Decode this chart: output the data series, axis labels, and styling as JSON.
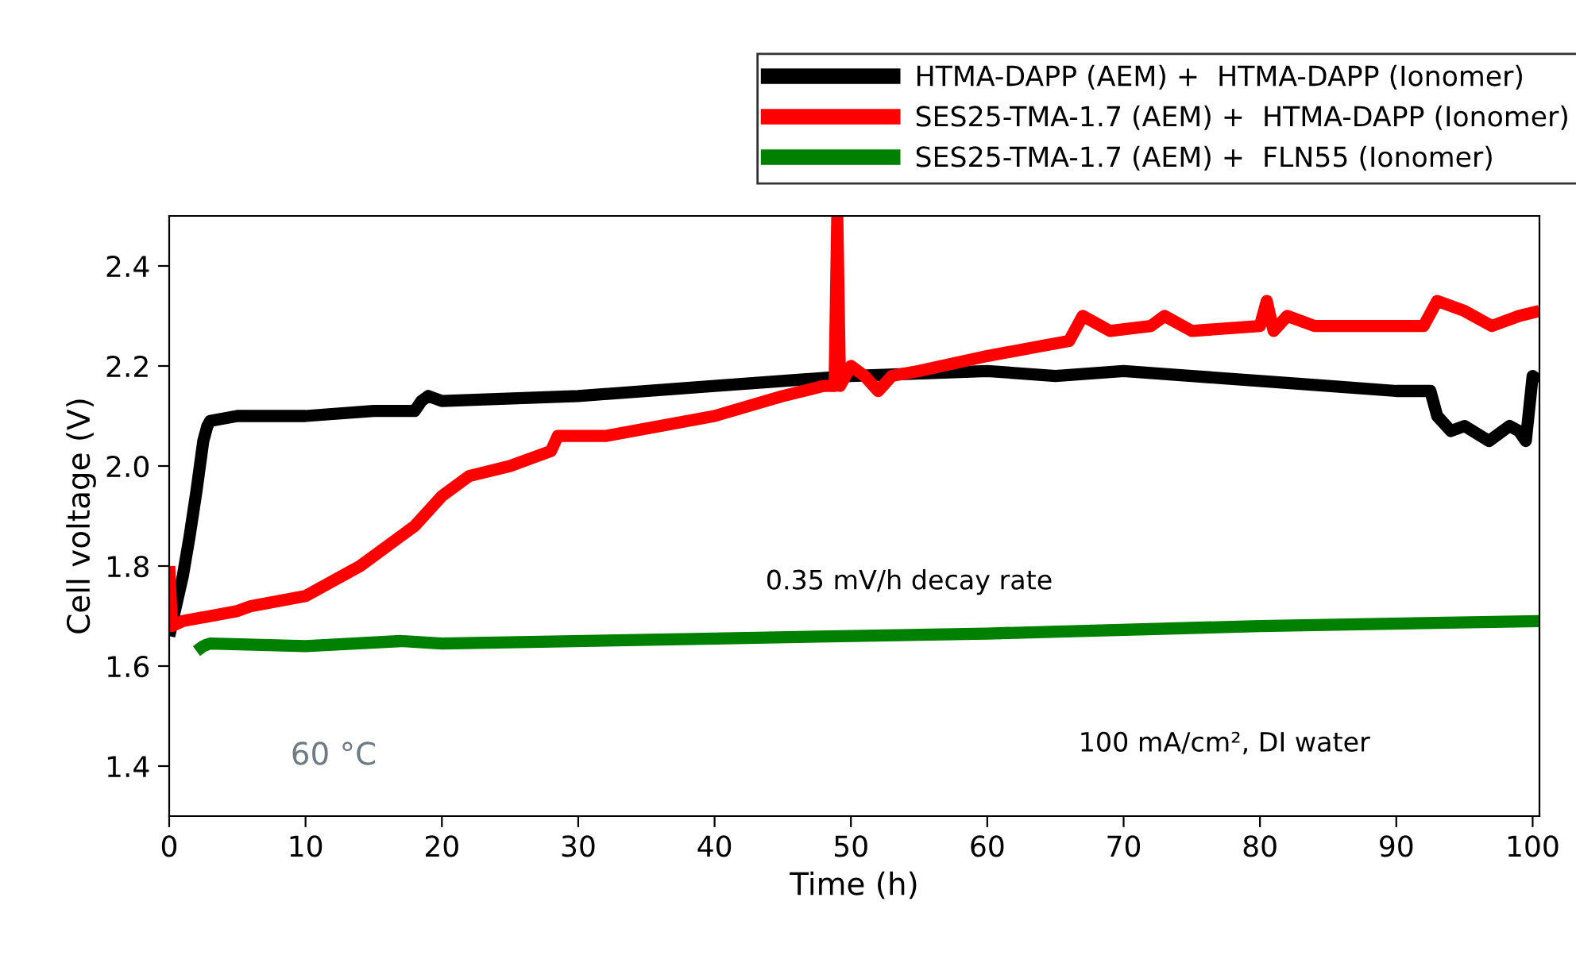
{
  "chart_data": {
    "type": "line",
    "xlabel": "Time (h)",
    "ylabel": "Cell voltage (V)",
    "xlim": [
      0,
      100.5
    ],
    "xticks": [
      0,
      10,
      20,
      30,
      40,
      50,
      60,
      70,
      80,
      90,
      100
    ],
    "ylim": [
      1.3,
      2.5
    ],
    "yticks": [
      {
        "value": 1.4,
        "label": "1.4"
      },
      {
        "value": 1.6,
        "label": "1.6"
      },
      {
        "value": 1.8,
        "label": "1.8"
      },
      {
        "value": 2.0,
        "label": "2.0"
      },
      {
        "value": 2.2,
        "label": "2.2"
      },
      {
        "value": 2.4,
        "label": "2.4"
      }
    ],
    "grid": false,
    "legend": "top right",
    "marker": "none",
    "line_style": "solid",
    "annotations": [
      "0.35 mV/h decay rate",
      "100 mA/cm², DI water",
      "60 °C"
    ],
    "series": [
      {
        "name": "HTMA-DAPP (AEM) +  HTMA-DAPP (Ionomer)",
        "color": "#000000",
        "x": [
          0,
          0.5,
          1,
          1.5,
          2,
          2.5,
          2.8,
          3,
          5,
          10,
          15,
          18,
          18.5,
          19,
          20,
          30,
          40,
          50,
          60,
          65,
          70,
          75,
          80,
          85,
          90,
          92.5,
          93,
          94,
          95,
          96.8,
          98.3,
          99,
          99.5,
          100,
          100.5
        ],
        "values": [
          1.66,
          1.72,
          1.78,
          1.86,
          1.95,
          2.05,
          2.08,
          2.09,
          2.1,
          2.1,
          2.11,
          2.11,
          2.13,
          2.14,
          2.13,
          2.14,
          2.16,
          2.18,
          2.19,
          2.18,
          2.19,
          2.18,
          2.17,
          2.16,
          2.15,
          2.15,
          2.1,
          2.07,
          2.08,
          2.05,
          2.08,
          2.07,
          2.05,
          2.18,
          2.17
        ]
      },
      {
        "name": "SES25-TMA-1.7 (AEM) +  HTMA-DAPP (Ionomer)",
        "color": "#ff0000",
        "x": [
          0,
          0.2,
          1,
          5,
          6,
          10,
          14,
          18,
          20,
          22,
          25,
          28,
          28.5,
          32,
          40,
          45,
          48,
          48.8,
          49,
          49.2,
          50,
          51,
          52,
          53,
          55,
          60,
          64,
          66,
          67,
          69,
          72,
          73,
          75,
          80,
          80.5,
          81,
          82,
          84,
          92,
          93,
          95,
          97,
          99,
          100.5
        ],
        "values": [
          1.8,
          1.68,
          1.69,
          1.71,
          1.72,
          1.74,
          1.8,
          1.88,
          1.94,
          1.98,
          2.0,
          2.03,
          2.06,
          2.06,
          2.1,
          2.14,
          2.16,
          2.16,
          2.5,
          2.16,
          2.2,
          2.18,
          2.15,
          2.18,
          2.19,
          2.22,
          2.24,
          2.25,
          2.3,
          2.27,
          2.28,
          2.3,
          2.27,
          2.28,
          2.33,
          2.27,
          2.3,
          2.28,
          2.28,
          2.33,
          2.31,
          2.28,
          2.3,
          2.31
        ]
      },
      {
        "name": "SES25-TMA-1.7 (AEM) +  FLN55 (Ionomer)",
        "color": "#008000",
        "x": [
          2,
          2.5,
          3,
          10,
          17,
          20,
          40,
          60,
          80,
          100.5
        ],
        "values": [
          1.63,
          1.64,
          1.645,
          1.64,
          1.65,
          1.645,
          1.655,
          1.665,
          1.68,
          1.69
        ]
      }
    ]
  }
}
